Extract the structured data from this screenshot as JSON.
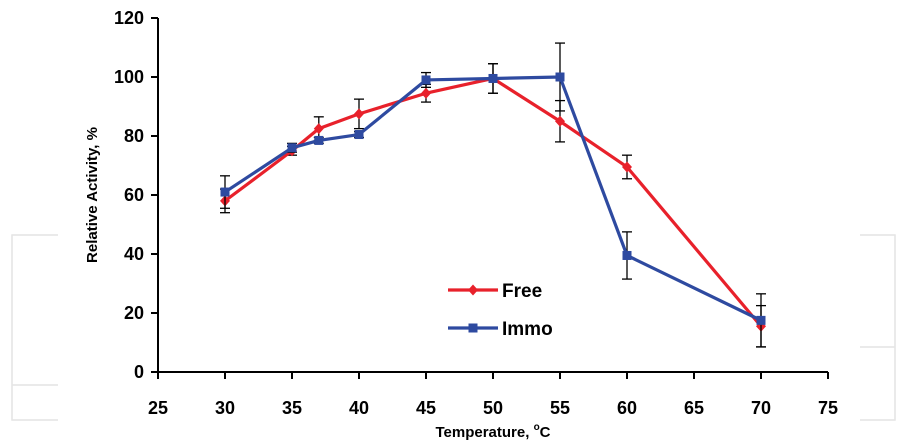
{
  "chart_data": {
    "type": "line",
    "title": "",
    "xlabel": "Temperature, ",
    "xlabel_unit": "C",
    "xlabel_degree": "o",
    "ylabel": "Relative Activity, %",
    "xlim": [
      25,
      75
    ],
    "ylim": [
      0,
      120
    ],
    "xticks": [
      25,
      30,
      35,
      40,
      45,
      50,
      55,
      60,
      65,
      70,
      75
    ],
    "yticks": [
      0,
      20,
      40,
      60,
      80,
      100,
      120
    ],
    "grid": false,
    "legend_position": "bottom-center",
    "series": [
      {
        "name": "Free",
        "color": "#e8212b",
        "marker": "diamond",
        "x": [
          30,
          35,
          37,
          40,
          45,
          50,
          55,
          60,
          70
        ],
        "y": [
          58,
          75,
          82.5,
          87.5,
          94.5,
          99.5,
          85,
          69.5,
          15.5
        ],
        "error": [
          4,
          1.5,
          4,
          5,
          3,
          5,
          7,
          4,
          7
        ]
      },
      {
        "name": "Immo",
        "color": "#2e4aa0",
        "marker": "square",
        "x": [
          30,
          35,
          37,
          40,
          45,
          50,
          55,
          60,
          70
        ],
        "y": [
          61,
          76,
          78.5,
          80.5,
          99,
          99.5,
          100,
          39.5,
          17.5
        ],
        "error": [
          5.5,
          1.5,
          1,
          1,
          2.5,
          5,
          11.5,
          8,
          9
        ]
      }
    ]
  }
}
